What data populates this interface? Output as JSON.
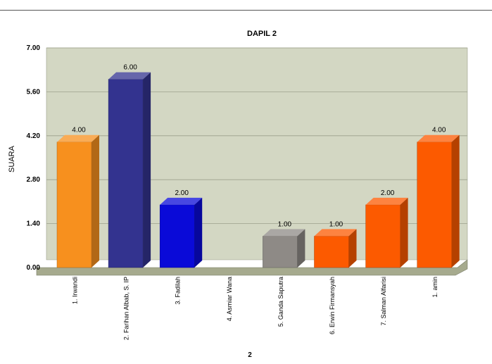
{
  "chart_data": {
    "type": "bar",
    "title": "DAPIL 2",
    "ylabel": "SUARA",
    "xlabel": "2",
    "ylim": [
      0,
      7
    ],
    "yticks": [
      "0.00",
      "1.40",
      "2.80",
      "4.20",
      "5.60",
      "7.00"
    ],
    "ytick_values": [
      0,
      1.4,
      2.8,
      4.2,
      5.6,
      7
    ],
    "grid": true,
    "categories": [
      "1. Irwandi",
      "2. Farihan Albab, S. IP",
      "3. Fadilah",
      "4. Asmiar Wana",
      "5. Ganda Saputra",
      "6. Erwin Firmansyah",
      "7. Salman Alfarisi",
      "1. amin"
    ],
    "values": [
      4,
      6,
      2,
      0,
      1,
      1,
      2,
      4
    ],
    "data_labels": [
      "4.00",
      "6.00",
      "2.00",
      "",
      "1.00",
      "1.00",
      "2.00",
      "4.00"
    ],
    "colors": [
      "#f7901e",
      "#33338f",
      "#0a0ad8",
      "#888888",
      "#8e8a86",
      "#fc5a00",
      "#fc5a00",
      "#fc5a00"
    ],
    "plot_background": "#d3d7c3",
    "floor_color": "#a6aa8e"
  }
}
